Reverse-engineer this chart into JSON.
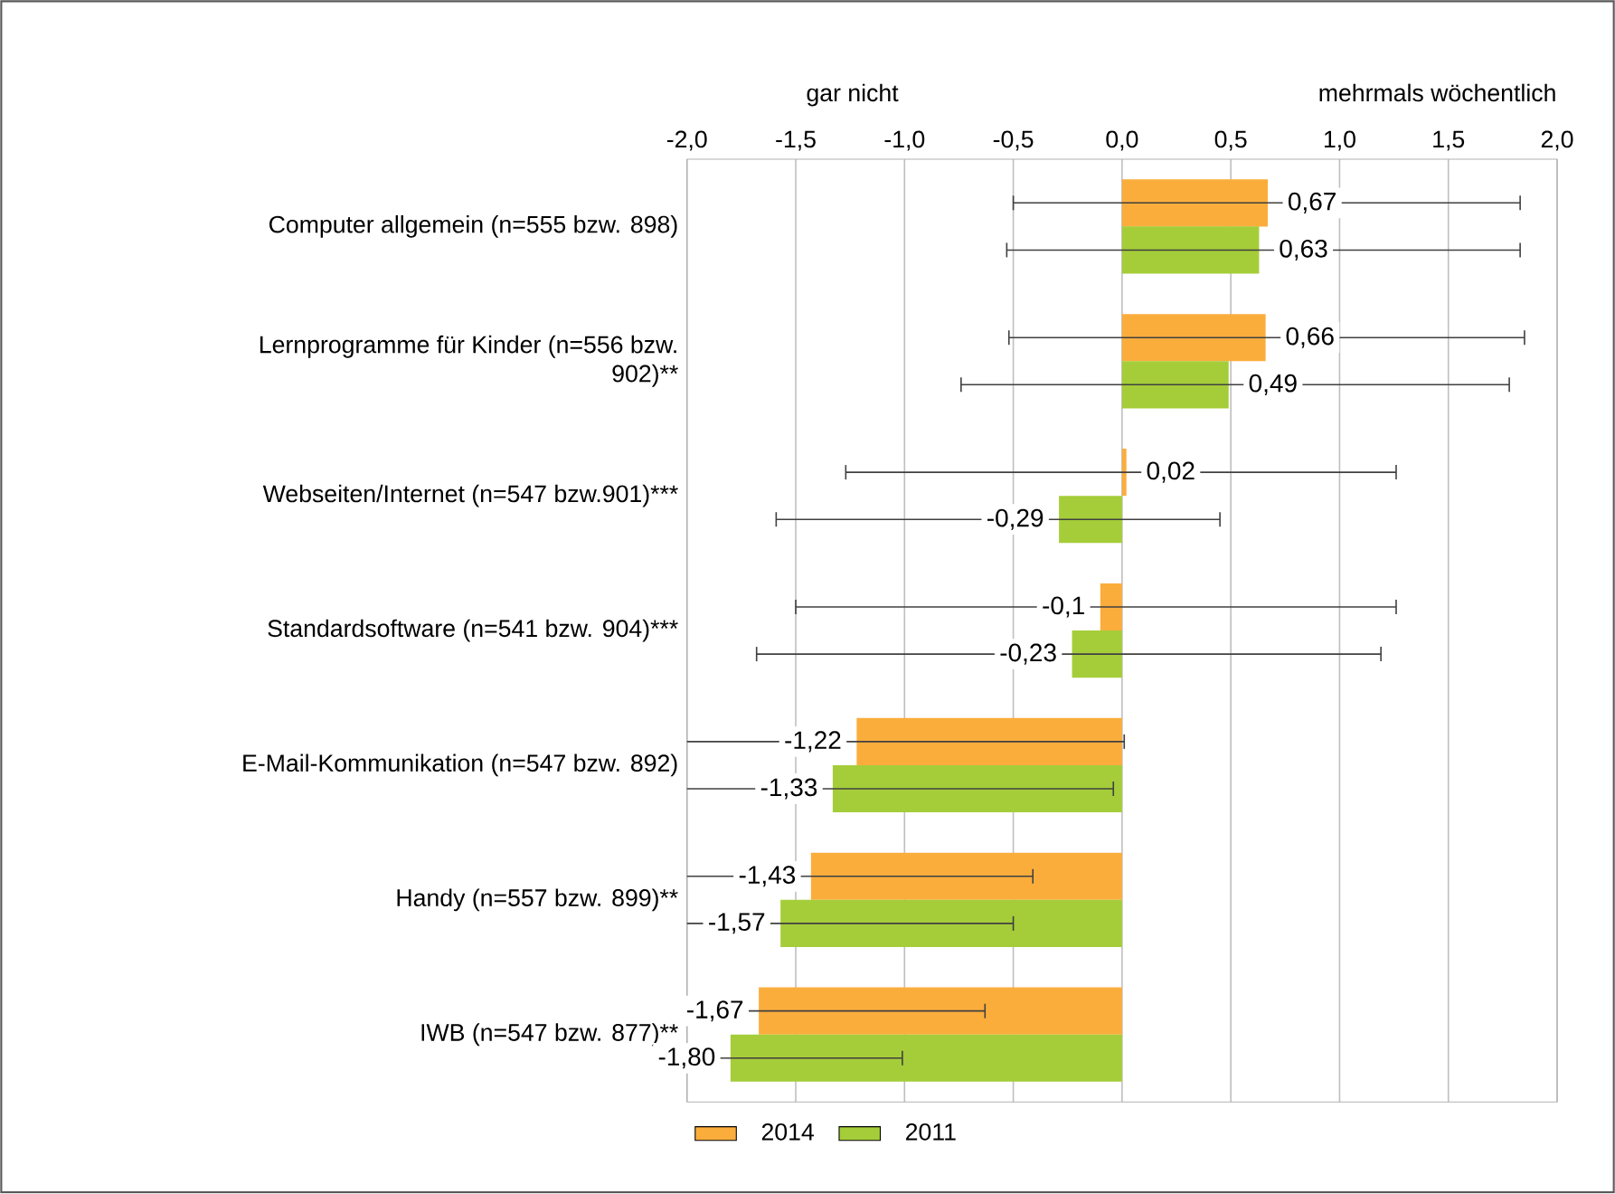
{
  "chart_data": {
    "type": "bar",
    "orientation": "horizontal",
    "categories": [
      "Computer allgemein (n=555 bzw. 898)",
      "Lernprogramme für Kinder (n=556 bzw. 902)**",
      "Webseiten/Internet (n=547 bzw.901)***",
      "Standardsoftware (n=541 bzw. 904)***",
      "E-Mail-Kommunikation (n=547 bzw. 892)",
      "Handy (n=557 bzw. 899)**",
      "IWB (n=547 bzw. 877)**"
    ],
    "series": [
      {
        "name": "2014",
        "color": "#fbad3c",
        "values": [
          0.67,
          0.66,
          0.02,
          -0.1,
          -1.22,
          -1.43,
          -1.67
        ],
        "value_labels": [
          "0,67",
          "0,66",
          "0,02",
          "-0,1",
          "-1,22",
          "-1,43",
          "-1,67"
        ],
        "errors": [
          [
            -0.5,
            1.83
          ],
          [
            -0.52,
            1.85
          ],
          [
            -1.27,
            1.26
          ],
          [
            -1.5,
            1.26
          ],
          [
            -2.0,
            0.01
          ],
          [
            -2.0,
            -0.41
          ],
          [
            -2.0,
            -0.63
          ]
        ]
      },
      {
        "name": "2011",
        "color": "#a5cd39",
        "values": [
          0.63,
          0.49,
          -0.29,
          -0.23,
          -1.33,
          -1.57,
          -1.8
        ],
        "value_labels": [
          "0,63",
          "0,49",
          "-0,29",
          "-0,23",
          "-1,33",
          "-1,57",
          "-1,80"
        ],
        "errors": [
          [
            -0.53,
            1.83
          ],
          [
            -0.74,
            1.78
          ],
          [
            -1.59,
            0.45
          ],
          [
            -1.68,
            1.19
          ],
          [
            -2.0,
            -0.04
          ],
          [
            -2.0,
            -0.5
          ],
          [
            -2.0,
            -1.01
          ]
        ]
      }
    ],
    "xlim": [
      -2.0,
      2.0
    ],
    "xticks": [
      {
        "value": -2.0,
        "label": "-2,0"
      },
      {
        "value": -1.5,
        "label": "-1,5"
      },
      {
        "value": -1.0,
        "label": "-1,0"
      },
      {
        "value": -0.5,
        "label": "-0,5"
      },
      {
        "value": 0.0,
        "label": "0,0"
      },
      {
        "value": 0.5,
        "label": "0,5"
      },
      {
        "value": 1.0,
        "label": "1,0"
      },
      {
        "value": 1.5,
        "label": "1,5"
      },
      {
        "value": 2.0,
        "label": "2,0"
      }
    ],
    "grid": "x",
    "legend": "bottom",
    "annotations": [
      "gar nicht",
      "mehrmals wöchentlich"
    ]
  }
}
